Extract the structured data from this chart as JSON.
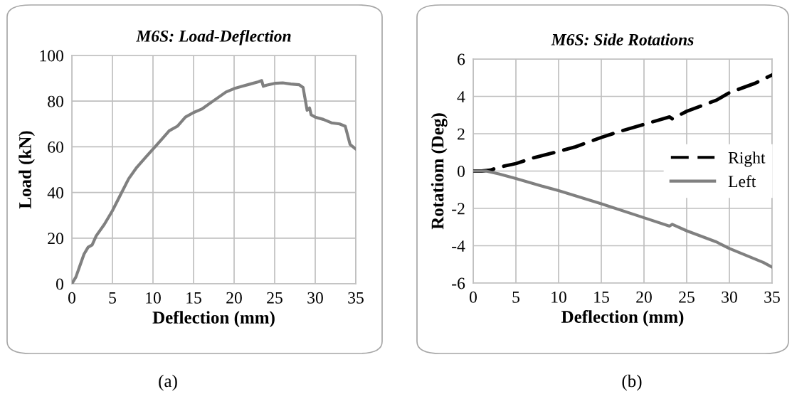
{
  "chart_data": [
    {
      "type": "line",
      "title": "M6S: Load-Deflection",
      "xlabel": "Deflection (mm)",
      "ylabel": "Load (kN)",
      "xlim": [
        0,
        35
      ],
      "xticks": [
        0,
        5,
        10,
        15,
        20,
        25,
        30,
        35
      ],
      "ylim": [
        0,
        100
      ],
      "yticks": [
        0,
        20,
        40,
        60,
        80,
        100
      ],
      "grid": true,
      "legend": false,
      "annotations": [
        "(a)"
      ],
      "series": [
        {
          "color": "#808080",
          "line_style": "solid",
          "x": [
            0,
            0.5,
            1,
            1.5,
            2,
            2.5,
            3,
            4,
            5,
            6,
            7,
            8,
            9,
            10,
            11,
            12,
            13,
            14,
            15,
            16,
            17,
            18,
            19,
            20,
            21,
            22,
            23,
            23.4,
            23.6,
            24,
            25,
            26,
            27,
            28,
            28.5,
            28.8,
            29,
            29.3,
            29.5,
            30,
            31,
            32,
            33,
            33.7,
            34,
            34.3,
            35
          ],
          "values": [
            0,
            3,
            8,
            13,
            16,
            17,
            21,
            26,
            32,
            39,
            46,
            51,
            55,
            59,
            63,
            67,
            69,
            73,
            75,
            76.5,
            79,
            81.5,
            84,
            85.5,
            86.5,
            87.5,
            88.5,
            89,
            86.5,
            87,
            87.8,
            88,
            87.5,
            87.2,
            86,
            80,
            76,
            77,
            74,
            73,
            72,
            70.5,
            70,
            69,
            65,
            61,
            59
          ]
        }
      ]
    },
    {
      "type": "line",
      "title": "M6S: Side Rotations",
      "xlabel": "Deflection (mm)",
      "ylabel": "Rotatiom (Deg)",
      "xlim": [
        0,
        35
      ],
      "xticks": [
        0,
        5,
        10,
        15,
        20,
        25,
        30,
        35
      ],
      "ylim": [
        -6,
        6
      ],
      "yticks": [
        {
          "value": -6,
          "label": "-6"
        },
        {
          "value": -4,
          "label": "-4"
        },
        {
          "value": -2,
          "label": "-2"
        },
        0,
        2,
        4,
        6
      ],
      "grid": true,
      "legend": "right",
      "annotations": [
        "(b)"
      ],
      "series": [
        {
          "name": "Right",
          "color": "#000000",
          "line_style": "dashed",
          "x": [
            0,
            1,
            2,
            3,
            5,
            7,
            10,
            12,
            15,
            17,
            20,
            23,
            23.3,
            25,
            28.5,
            30,
            33,
            35
          ],
          "values": [
            0,
            0,
            0.05,
            0.2,
            0.4,
            0.7,
            1.05,
            1.3,
            1.8,
            2.1,
            2.5,
            2.9,
            2.8,
            3.2,
            3.8,
            4.2,
            4.7,
            5.15
          ]
        },
        {
          "name": "Left",
          "color": "#808080",
          "line_style": "solid",
          "x": [
            0,
            1.5,
            3,
            5,
            8,
            10,
            15,
            20,
            23,
            23.3,
            25,
            28.5,
            30,
            34,
            35
          ],
          "values": [
            0,
            0,
            -0.15,
            -0.4,
            -0.8,
            -1.05,
            -1.75,
            -2.5,
            -2.95,
            -2.85,
            -3.2,
            -3.8,
            -4.15,
            -4.9,
            -5.15
          ]
        }
      ]
    }
  ]
}
